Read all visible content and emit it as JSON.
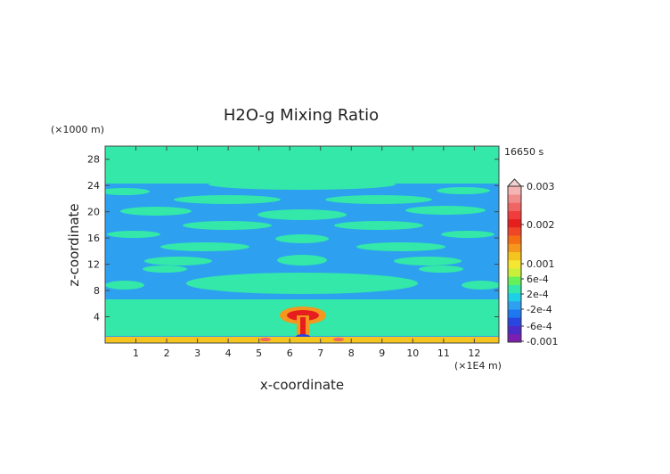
{
  "chart_data": {
    "type": "heatmap",
    "title": "H2O-g Mixing Ratio",
    "xlabel": "x-coordinate",
    "ylabel": "z-coordinate",
    "x_unit": "(×1E4 m)",
    "y_unit": "(×1000 m)",
    "time_label": "16650 s",
    "xlim": [
      0,
      12.8
    ],
    "ylim": [
      0,
      30
    ],
    "x_ticks": [
      "1",
      "2",
      "3",
      "4",
      "5",
      "6",
      "7",
      "8",
      "9",
      "10",
      "11",
      "12"
    ],
    "y_ticks": [
      "4",
      "8",
      "12",
      "16",
      "20",
      "24",
      "28"
    ],
    "colorbar": {
      "labels": [
        "0.003",
        "0.002",
        "0.001",
        "6e-4",
        "2e-4",
        "-2e-4",
        "-6e-4",
        "-0.001"
      ],
      "colors": [
        "#7a1fb0",
        "#4b2cc8",
        "#2846e0",
        "#1e78f0",
        "#2ea0f0",
        "#1ed0e6",
        "#33e8a8",
        "#66f05a",
        "#c8f03a",
        "#f5e632",
        "#f5c41e",
        "#f5961e",
        "#f56e14",
        "#f04628",
        "#e61e1e",
        "#f03c3c",
        "#f06464",
        "#f08c8c",
        "#f5b4b4"
      ]
    },
    "fields": {
      "background": "#2ea0f0",
      "upper_band": "#33e8a8",
      "plume_outer": "#f5961e",
      "plume_core": "#e61e1e",
      "surface_layer": "#f5c41e"
    },
    "grid": false,
    "legend": "right"
  }
}
